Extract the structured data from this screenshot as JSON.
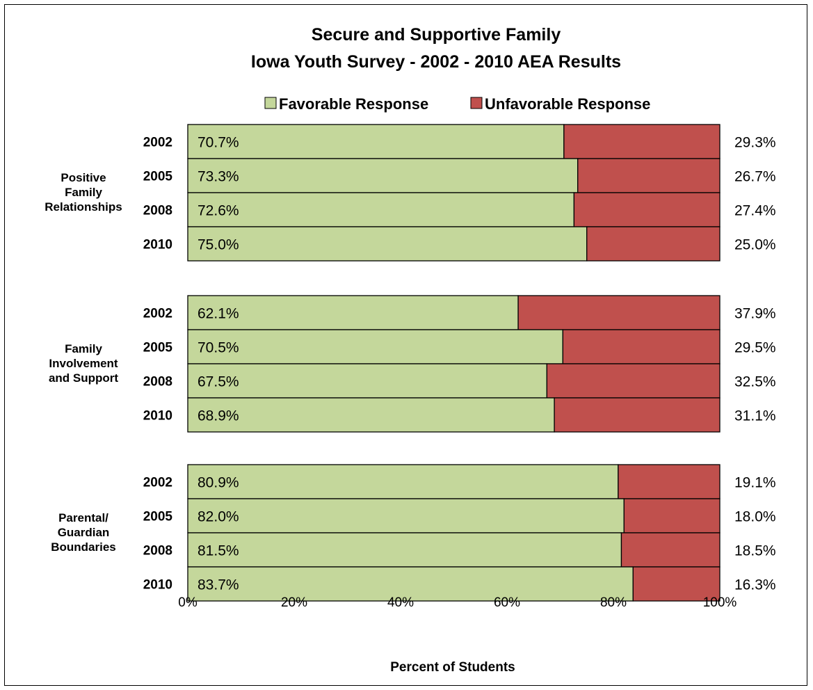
{
  "chart_data": {
    "type": "bar",
    "orientation": "horizontal",
    "stacked": true,
    "title": [
      "Secure and Supportive Family",
      "Iowa Youth Survey - 2002 - 2010 AEA Results"
    ],
    "xlabel": "Percent of Students",
    "xlim": [
      0,
      100
    ],
    "x_ticks": [
      "0%",
      "20%",
      "40%",
      "60%",
      "80%",
      "100%"
    ],
    "legend_position": "top",
    "series": [
      {
        "name": "Favorable Response",
        "color": "#c4d79b"
      },
      {
        "name": "Unfavorable Response",
        "color": "#c0504d"
      }
    ],
    "groups": [
      {
        "label": [
          "Positive",
          "Family",
          "Relationships"
        ],
        "rows": [
          {
            "year": "2002",
            "favorable": 70.7,
            "unfavorable": 29.3,
            "fav_label": "70.7%",
            "unfav_label": "29.3%"
          },
          {
            "year": "2005",
            "favorable": 73.3,
            "unfavorable": 26.7,
            "fav_label": "73.3%",
            "unfav_label": "26.7%"
          },
          {
            "year": "2008",
            "favorable": 72.6,
            "unfavorable": 27.4,
            "fav_label": "72.6%",
            "unfav_label": "27.4%"
          },
          {
            "year": "2010",
            "favorable": 75.0,
            "unfavorable": 25.0,
            "fav_label": "75.0%",
            "unfav_label": "25.0%"
          }
        ]
      },
      {
        "label": [
          "Family",
          "Involvement",
          "and Support"
        ],
        "rows": [
          {
            "year": "2002",
            "favorable": 62.1,
            "unfavorable": 37.9,
            "fav_label": "62.1%",
            "unfav_label": "37.9%"
          },
          {
            "year": "2005",
            "favorable": 70.5,
            "unfavorable": 29.5,
            "fav_label": "70.5%",
            "unfav_label": "29.5%"
          },
          {
            "year": "2008",
            "favorable": 67.5,
            "unfavorable": 32.5,
            "fav_label": "67.5%",
            "unfav_label": "32.5%"
          },
          {
            "year": "2010",
            "favorable": 68.9,
            "unfavorable": 31.1,
            "fav_label": "68.9%",
            "unfav_label": "31.1%"
          }
        ]
      },
      {
        "label": [
          "Parental/",
          "Guardian",
          "Boundaries"
        ],
        "rows": [
          {
            "year": "2002",
            "favorable": 80.9,
            "unfavorable": 19.1,
            "fav_label": "80.9%",
            "unfav_label": "19.1%"
          },
          {
            "year": "2005",
            "favorable": 82.0,
            "unfavorable": 18.0,
            "fav_label": "82.0%",
            "unfav_label": "18.0%"
          },
          {
            "year": "2008",
            "favorable": 81.5,
            "unfavorable": 18.5,
            "fav_label": "81.5%",
            "unfav_label": "18.5%"
          },
          {
            "year": "2010",
            "favorable": 83.7,
            "unfavorable": 16.3,
            "fav_label": "83.7%",
            "unfav_label": "16.3%"
          }
        ]
      }
    ]
  }
}
